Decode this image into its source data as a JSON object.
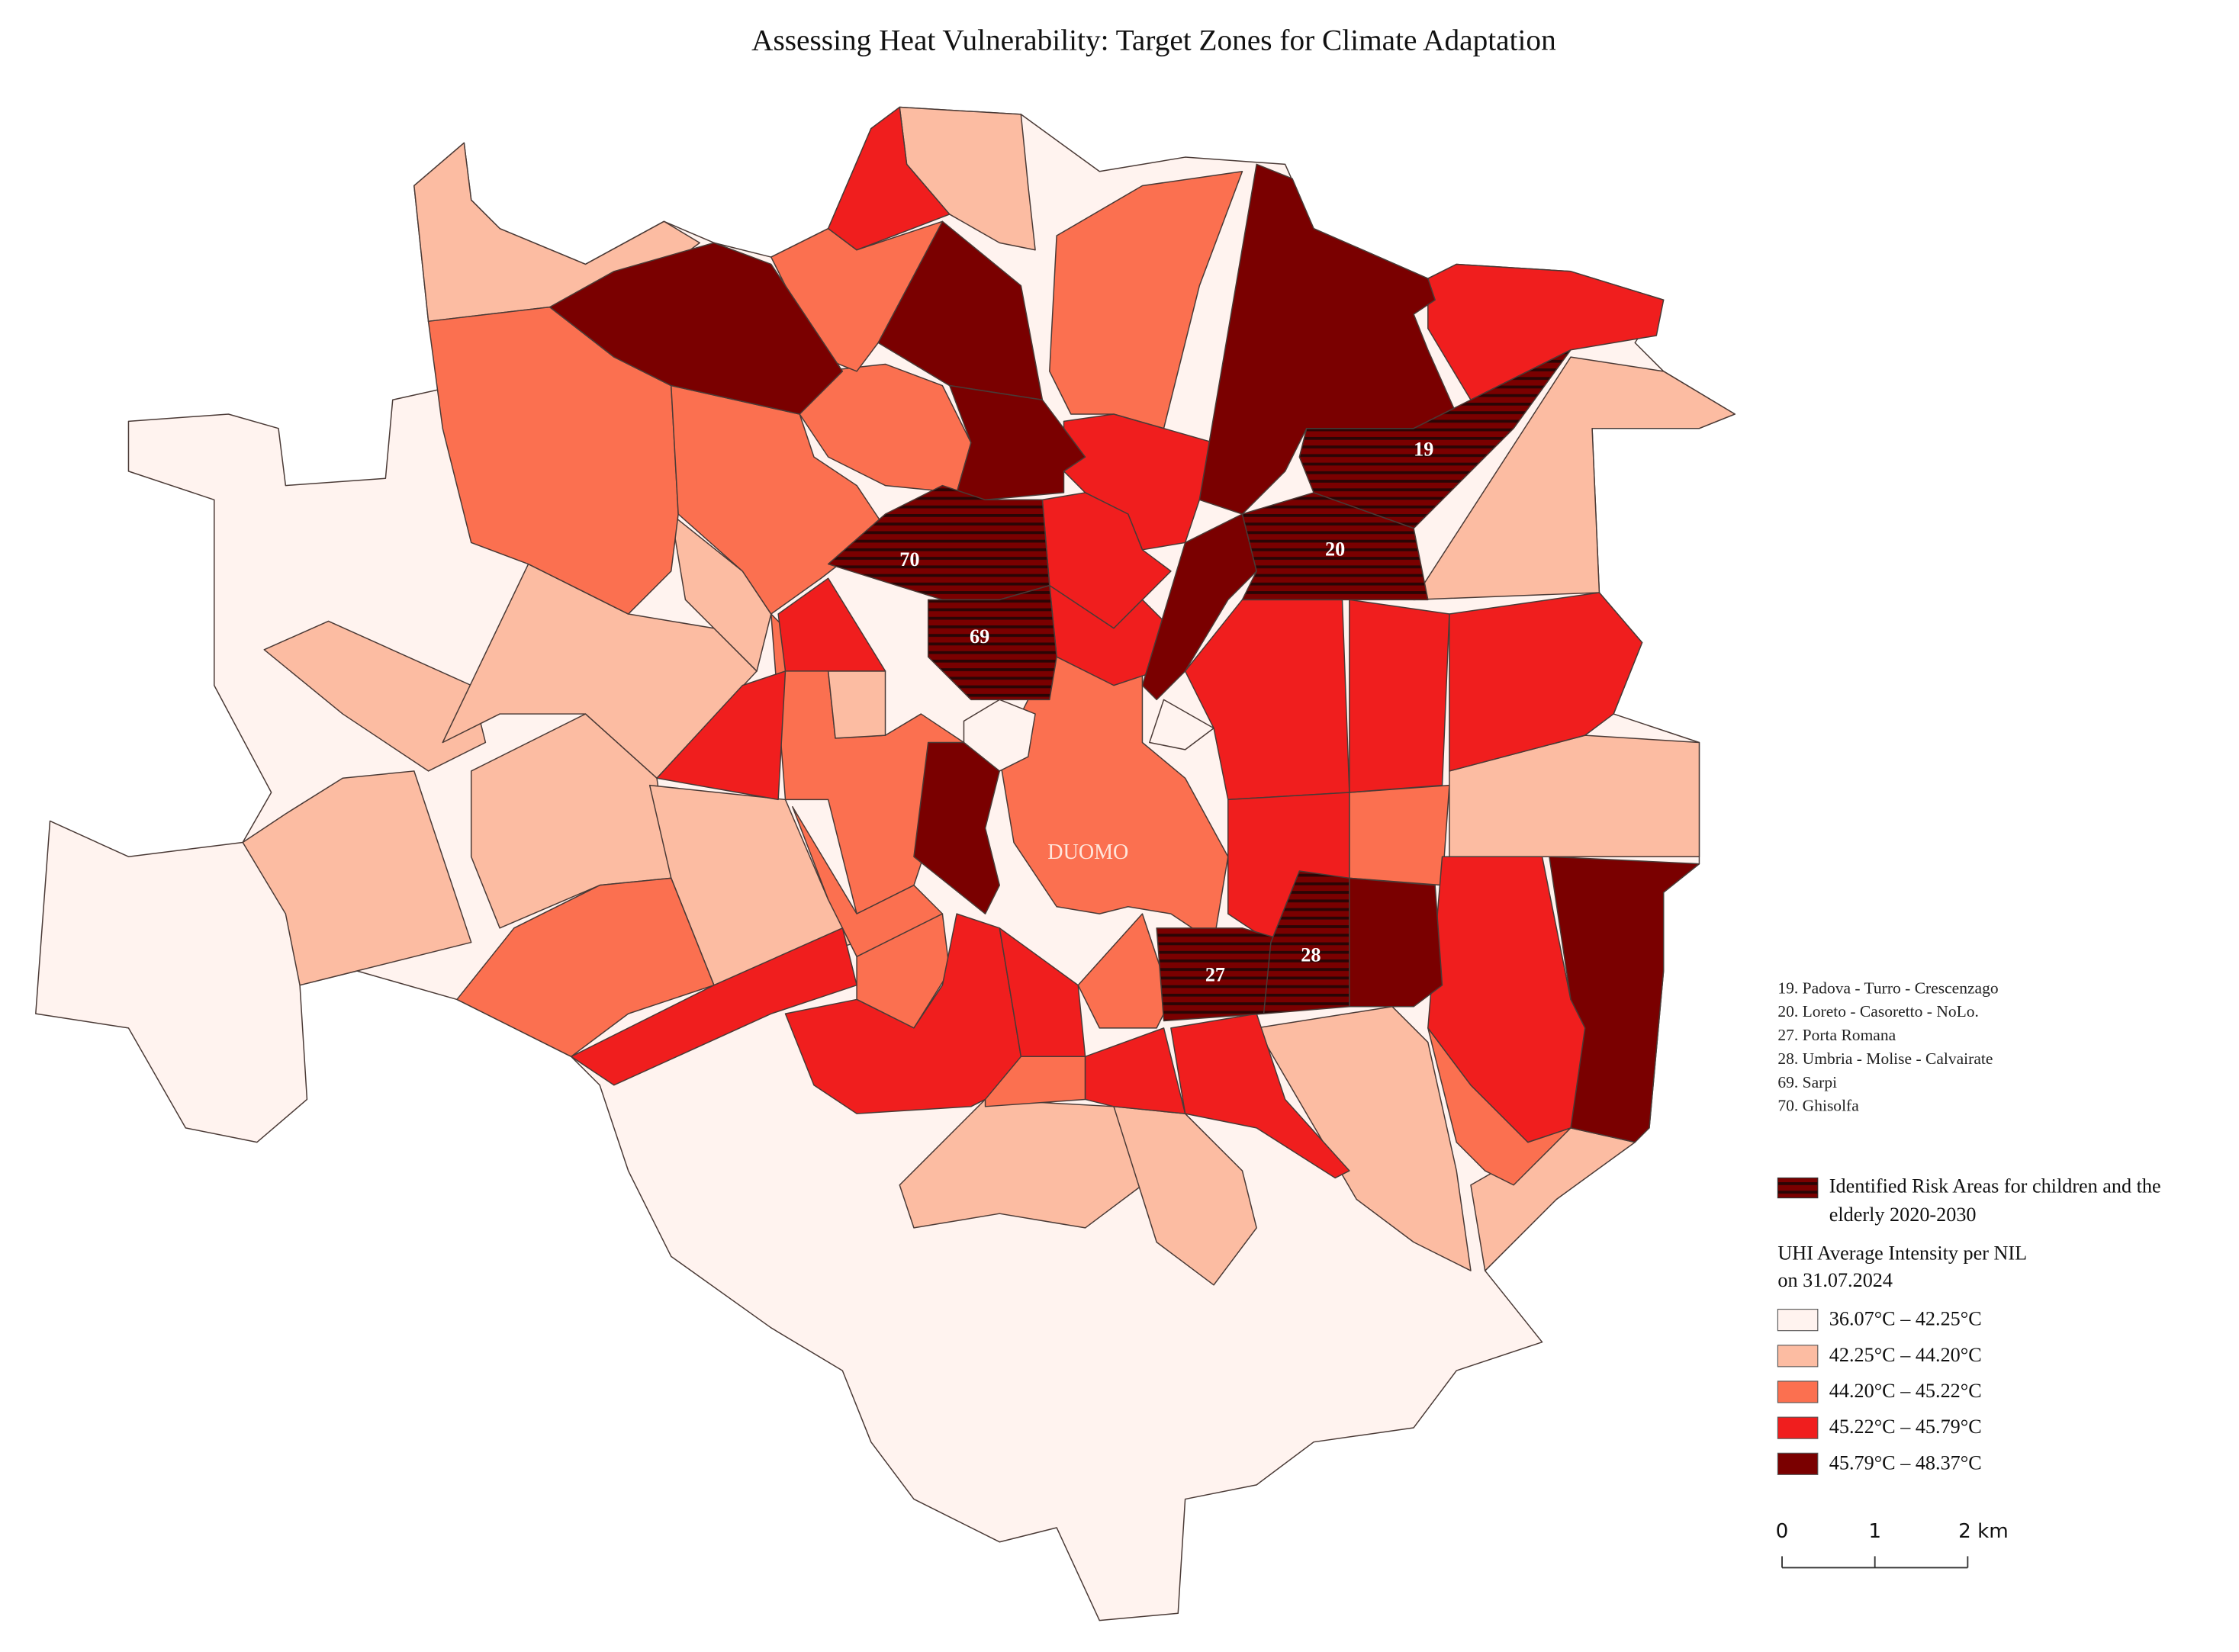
{
  "title": "Assessing Heat Vulnerability: Target Zones for Climate Adaptation",
  "zone_labels": [
    "19",
    "20",
    "27",
    "28",
    "69",
    "70"
  ],
  "center_label": "DUOMO",
  "notes": [
    "19. Padova - Turro - Crescenzago",
    "20. Loreto - Casoretto - NoLo.",
    "27. Porta Romana",
    "28. Umbria - Molise - Calvairate",
    "69. Sarpi",
    "70. Ghisolfa"
  ],
  "legend": {
    "risk_label": [
      "Identified Risk Areas for children and the",
      "elderly 2020-2030"
    ],
    "title": [
      "UHI Average Intensity per NIL",
      "on 31.07.2024"
    ],
    "classes": [
      {
        "label": "36.07°C – 42.25°C",
        "color": "#fff3ef"
      },
      {
        "label": "42.25°C – 44.20°C",
        "color": "#fcbca2"
      },
      {
        "label": "44.20°C – 45.22°C",
        "color": "#fb7050"
      },
      {
        "label": "45.22°C – 45.79°C",
        "color": "#f01e1e"
      },
      {
        "label": "45.79°C – 48.37°C",
        "color": "#7a0000"
      }
    ]
  },
  "scale_bar": [
    "0",
    "1",
    "2 km"
  ]
}
